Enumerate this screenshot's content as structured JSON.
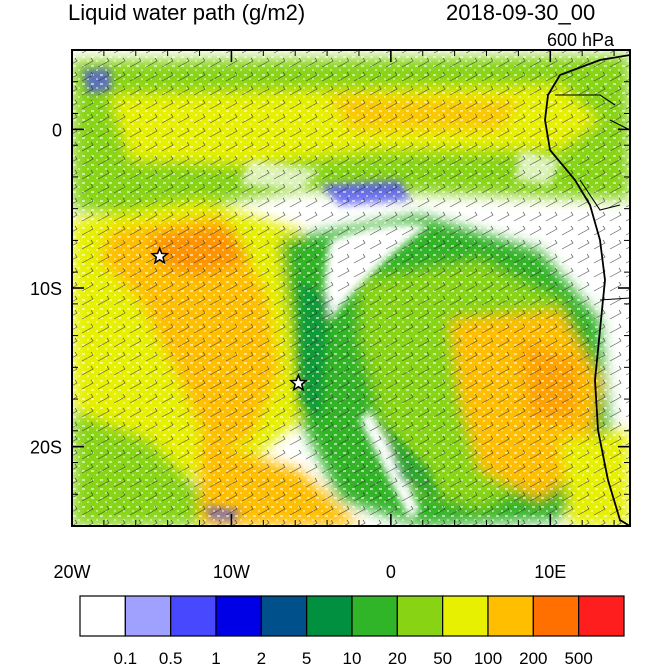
{
  "header": {
    "title": "Liquid water path (g/m2)",
    "datetime": "2018-09-30_00",
    "level": "600 hPa"
  },
  "map": {
    "lon_range": [
      -20,
      15
    ],
    "lat_range": [
      -25,
      5
    ],
    "lon_ticks": [
      {
        "value": -20,
        "label": "20W"
      },
      {
        "value": -10,
        "label": "10W"
      },
      {
        "value": 0,
        "label": "0"
      },
      {
        "value": 10,
        "label": "10E"
      }
    ],
    "lat_ticks": [
      {
        "value": 0,
        "label": "0"
      },
      {
        "value": -10,
        "label": "10S"
      },
      {
        "value": -20,
        "label": "20S"
      }
    ],
    "markers": [
      {
        "lon": -14.5,
        "lat": -8,
        "symbol": "star"
      },
      {
        "lon": -5.8,
        "lat": -16,
        "symbol": "star"
      }
    ]
  },
  "colorbar": {
    "colors": [
      "#ffffff",
      "#a0a0ff",
      "#4848ff",
      "#0000e6",
      "#00508c",
      "#009040",
      "#30b428",
      "#88d414",
      "#e6f000",
      "#ffbe00",
      "#ff7000",
      "#ff1e1e"
    ],
    "labels": [
      "0.1",
      "0.5",
      "1",
      "2",
      "5",
      "10",
      "20",
      "50",
      "100",
      "200",
      "500"
    ]
  }
}
